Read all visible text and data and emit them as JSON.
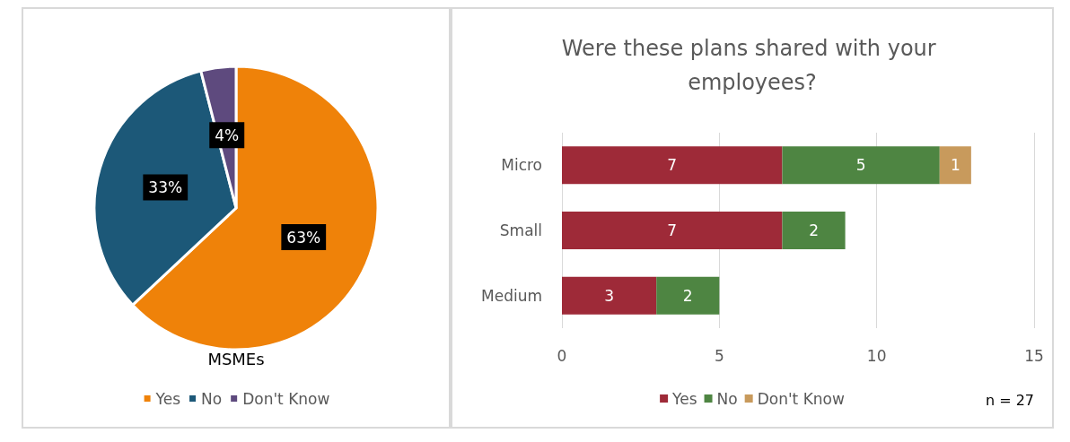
{
  "chart_data": [
    {
      "type": "pie",
      "title": "MSMEs",
      "categories": [
        "Yes",
        "No",
        "Don't Know"
      ],
      "values": [
        63,
        33,
        4
      ],
      "colors": [
        "#ef8209",
        "#1c5878",
        "#5e4a7e"
      ],
      "value_labels": [
        "63%",
        "33%",
        "4%"
      ],
      "legend": "bottom"
    },
    {
      "type": "bar",
      "orientation": "horizontal",
      "stacked": true,
      "title": "Were these plans shared with your employees?",
      "categories": [
        "Micro",
        "Small",
        "Medium"
      ],
      "series": [
        {
          "name": "Yes",
          "color": "#9e2a38",
          "values": [
            7,
            7,
            3
          ]
        },
        {
          "name": "No",
          "color": "#4e8542",
          "values": [
            5,
            2,
            2
          ]
        },
        {
          "name": "Don't Know",
          "color": "#c89a5c",
          "values": [
            1,
            null,
            null
          ]
        }
      ],
      "xlim": [
        0,
        15
      ],
      "xticks": [
        0,
        5,
        10,
        15
      ],
      "grid": "x",
      "data_labels": true,
      "legend": "bottom",
      "annotations": [
        "n = 27"
      ]
    }
  ]
}
